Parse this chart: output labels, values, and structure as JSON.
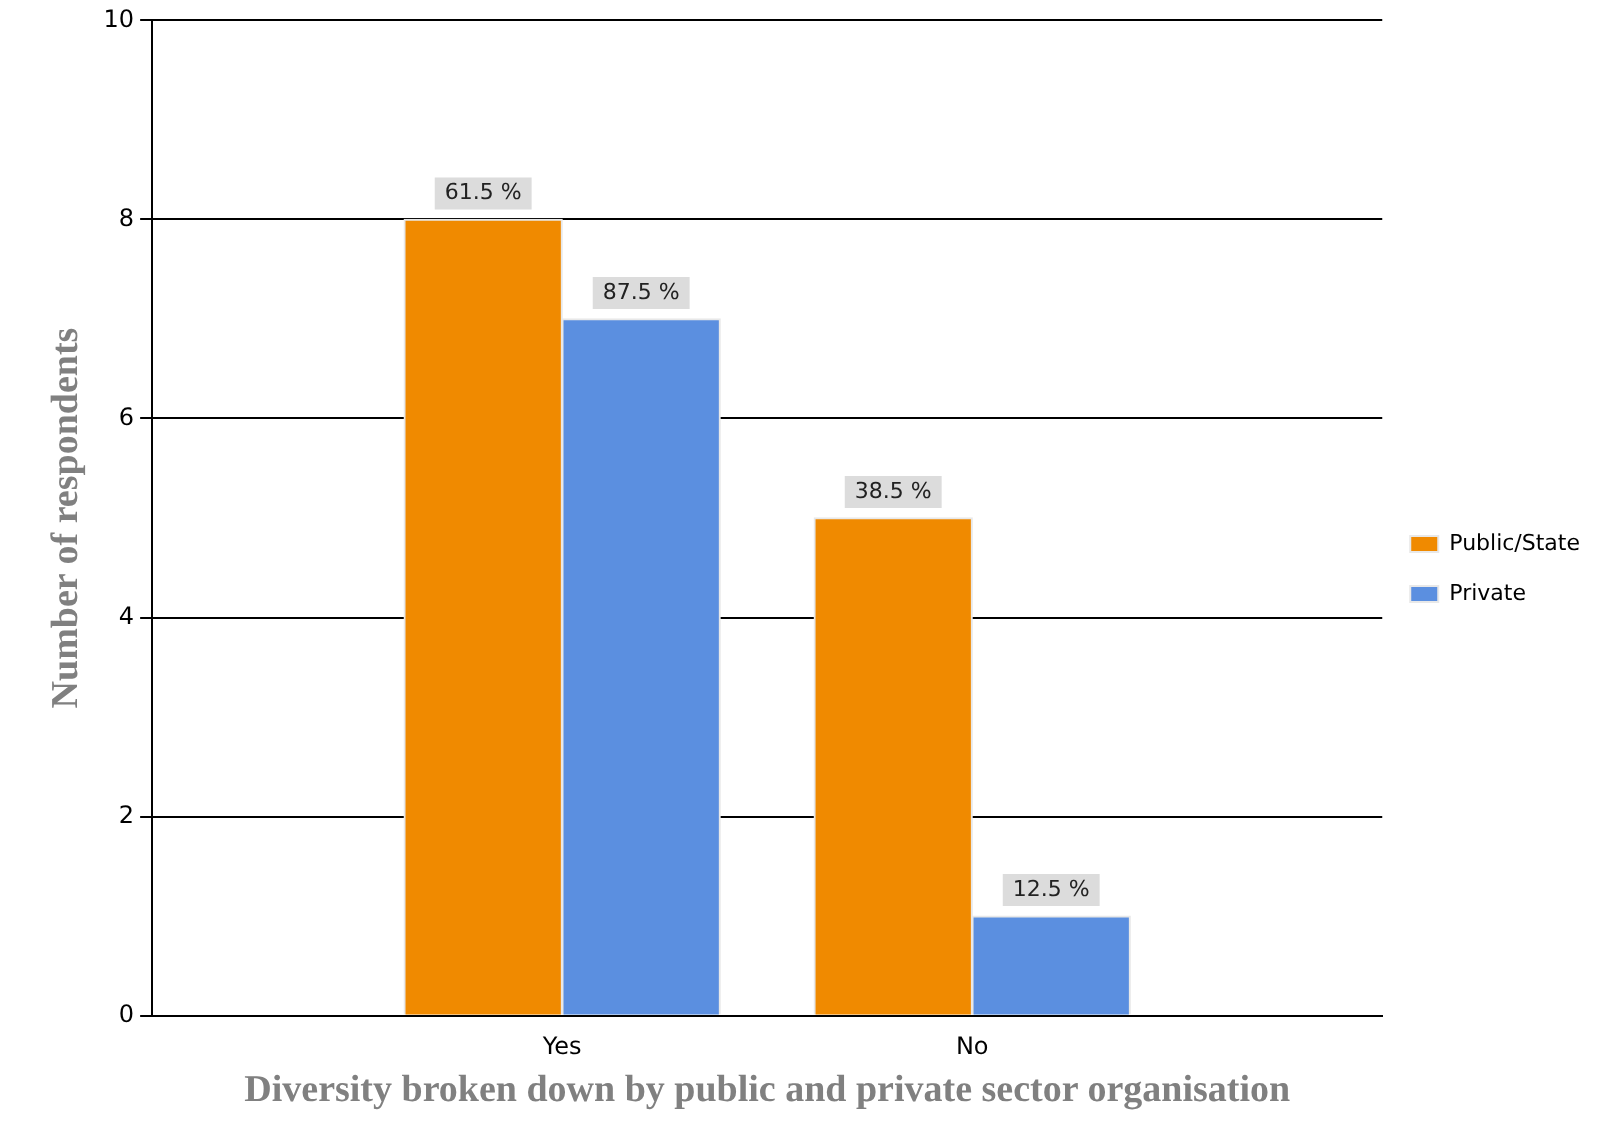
{
  "chart_data": {
    "type": "bar",
    "xlabel": "Diversity broken down by public and private sector organisation",
    "ylabel": "Number of respondents",
    "categories": [
      "Yes",
      "No"
    ],
    "series": [
      {
        "name": "Public/State",
        "color": "#f08a00",
        "values": [
          8,
          5
        ]
      },
      {
        "name": "Private",
        "color": "#5b8fe0",
        "values": [
          7,
          1
        ]
      }
    ],
    "annotations": [
      {
        "text": "61.5 %",
        "x": "Yes",
        "y": 8
      },
      {
        "text": "87.5 %",
        "x": "Yes",
        "y": 7
      },
      {
        "text": "38.5 %",
        "x": "No",
        "y": 5
      },
      {
        "text": "12.5 %",
        "x": "No",
        "y": 1
      }
    ],
    "ylim": [
      0,
      10
    ],
    "yticks": [
      0,
      2,
      4,
      6,
      8,
      10
    ],
    "grid": "y",
    "legend": "right"
  }
}
